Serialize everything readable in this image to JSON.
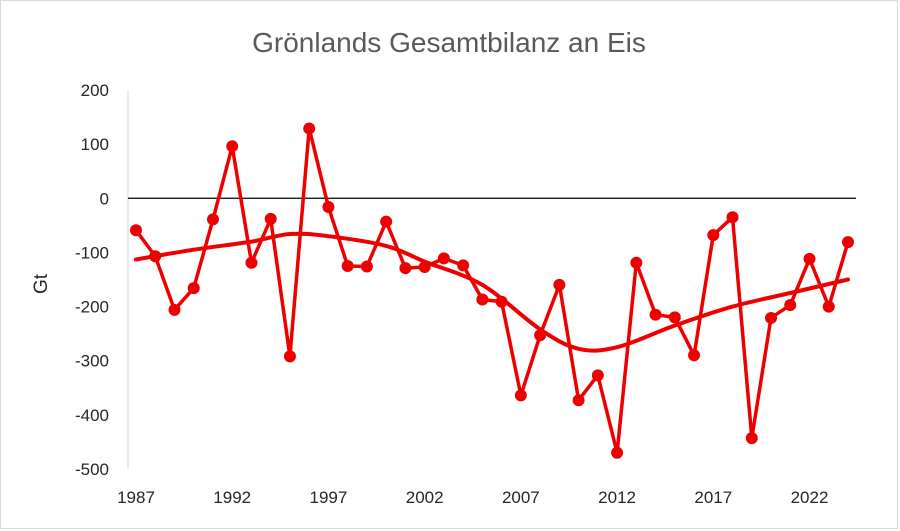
{
  "chart_data": {
    "type": "line",
    "title": "Grönlands Gesamtbilanz an Eis",
    "xlabel": "",
    "ylabel": "Gt",
    "ylim": [
      -500,
      200
    ],
    "xlim": [
      1987,
      2024
    ],
    "yticks": [
      200,
      100,
      0,
      -100,
      -200,
      -300,
      -400,
      -500
    ],
    "xticks": [
      1987,
      1992,
      1997,
      2002,
      2007,
      2012,
      2017,
      2022
    ],
    "grid": false,
    "legend": "none",
    "color": "#ee0000",
    "series": [
      {
        "name": "",
        "style": "line-with-markers",
        "x": [
          1987,
          1988,
          1989,
          1990,
          1991,
          1992,
          1993,
          1994,
          1995,
          1996,
          1997,
          1998,
          1999,
          2000,
          2001,
          2002,
          2003,
          2004,
          2005,
          2006,
          2007,
          2008,
          2009,
          2010,
          2011,
          2012,
          2013,
          2014,
          2015,
          2016,
          2017,
          2018,
          2019,
          2020,
          2021,
          2022,
          2023,
          2024
        ],
        "values": [
          -59,
          -107,
          -206,
          -166,
          -39,
          96,
          -119,
          -38,
          -292,
          129,
          -16,
          -125,
          -126,
          -43,
          -129,
          -127,
          -111,
          -124,
          -187,
          -191,
          -364,
          -253,
          -160,
          -373,
          -327,
          -470,
          -119,
          -215,
          -220,
          -290,
          -68,
          -35,
          -443,
          -221,
          -197,
          -112,
          -200,
          -81
        ]
      },
      {
        "name": "",
        "style": "smooth-trend",
        "x": [
          1987,
          1990,
          1993,
          1995,
          1997,
          2000,
          2002,
          2005,
          2008,
          2010,
          2012,
          2015,
          2018,
          2021,
          2024
        ],
        "values": [
          -113,
          -95,
          -80,
          -66,
          -70,
          -88,
          -117,
          -160,
          -242,
          -278,
          -275,
          -235,
          -200,
          -175,
          -150
        ]
      }
    ]
  }
}
